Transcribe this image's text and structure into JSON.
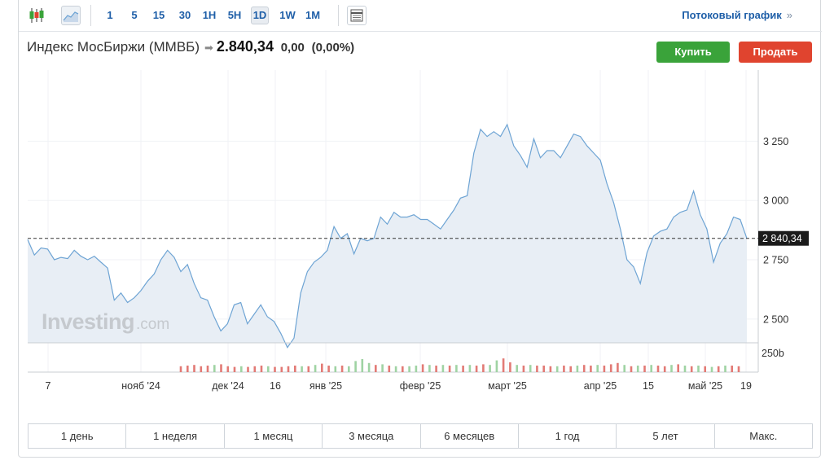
{
  "toolbar": {
    "candles_icon": "candlestick-icon",
    "area_icon": "area-chart-icon",
    "table_icon": "data-table-icon",
    "intervals": [
      {
        "label": "1",
        "active": false
      },
      {
        "label": "5",
        "active": false
      },
      {
        "label": "15",
        "active": false
      },
      {
        "label": "30",
        "active": false
      },
      {
        "label": "1H",
        "active": false
      },
      {
        "label": "5H",
        "active": false
      },
      {
        "label": "1D",
        "active": true
      },
      {
        "label": "1W",
        "active": false
      },
      {
        "label": "1M",
        "active": false
      }
    ],
    "stream_link": "Потоковый график",
    "stream_chevron": "»"
  },
  "header": {
    "instrument": "Индекс МосБиржи (MMBБ)",
    "price": "2.840,34",
    "change": "0,00",
    "change_pct": "(0,00%)"
  },
  "actions": {
    "buy": "Купить",
    "sell": "Продать"
  },
  "watermark": {
    "brand": "Investing",
    "suffix": ".com"
  },
  "colors": {
    "line": "#6ea4d4",
    "fill": "#e8eef5",
    "buy": "#3aa33a",
    "sell": "#e0442f",
    "vol_up": "#9fd3a3",
    "vol_down": "#e27a75"
  },
  "chart_data": {
    "type": "area",
    "title": "",
    "x_tick_labels": [
      "7",
      "нояб '24",
      "дек '24",
      "16",
      "янв '25",
      "февр '25",
      "март '25",
      "апр '25",
      "15",
      "май '25",
      "19"
    ],
    "y_tick_labels": [
      "3 250",
      "3 000",
      "2 750",
      "2 500"
    ],
    "y_ticks": [
      3250,
      3000,
      2750,
      2500
    ],
    "ylim": [
      2400,
      3550
    ],
    "last_price_label": "2 840,34",
    "last_price": 2840.34,
    "volume_label": "250b",
    "grid": true,
    "series": [
      {
        "values": [
          2835,
          2770,
          2800,
          2795,
          2750,
          2760,
          2755,
          2790,
          2765,
          2750,
          2765,
          2740,
          2715,
          2580,
          2610,
          2570,
          2590,
          2620,
          2660,
          2690,
          2750,
          2790,
          2760,
          2700,
          2730,
          2650,
          2590,
          2580,
          2510,
          2450,
          2480,
          2560,
          2570,
          2480,
          2520,
          2560,
          2510,
          2490,
          2440,
          2380,
          2420,
          2610,
          2700,
          2740,
          2760,
          2790,
          2890,
          2840,
          2860,
          2775,
          2840,
          2830,
          2840,
          2930,
          2900,
          2950,
          2930,
          2930,
          2940,
          2920,
          2920,
          2900,
          2880,
          2920,
          2960,
          3010,
          3020,
          3200,
          3300,
          3270,
          3290,
          3270,
          3320,
          3230,
          3190,
          3140,
          3260,
          3180,
          3210,
          3210,
          3180,
          3230,
          3280,
          3270,
          3230,
          3200,
          3170,
          3070,
          2990,
          2880,
          2750,
          2720,
          2650,
          2780,
          2850,
          2870,
          2880,
          2930,
          2950,
          2960,
          3040,
          2940,
          2880,
          2740,
          2820,
          2860,
          2930,
          2920,
          2840
        ],
        "volume": [
          {
            "v": 0.45,
            "d": true
          },
          {
            "v": 0.5,
            "d": true
          },
          {
            "v": 0.55,
            "d": true
          },
          {
            "v": 0.45,
            "d": true
          },
          {
            "v": 0.5,
            "d": true
          },
          {
            "v": 0.55,
            "d": false
          },
          {
            "v": 0.6,
            "d": true
          },
          {
            "v": 0.45,
            "d": true
          },
          {
            "v": 0.4,
            "d": true
          },
          {
            "v": 0.45,
            "d": false
          },
          {
            "v": 0.4,
            "d": true
          },
          {
            "v": 0.45,
            "d": true
          },
          {
            "v": 0.5,
            "d": true
          },
          {
            "v": 0.45,
            "d": false
          },
          {
            "v": 0.4,
            "d": true
          },
          {
            "v": 0.4,
            "d": true
          },
          {
            "v": 0.45,
            "d": true
          },
          {
            "v": 0.5,
            "d": true
          },
          {
            "v": 0.45,
            "d": false
          },
          {
            "v": 0.45,
            "d": true
          },
          {
            "v": 0.55,
            "d": false
          },
          {
            "v": 0.65,
            "d": true
          },
          {
            "v": 0.5,
            "d": true
          },
          {
            "v": 0.45,
            "d": false
          },
          {
            "v": 0.5,
            "d": true
          },
          {
            "v": 0.45,
            "d": false
          },
          {
            "v": 0.85,
            "d": false
          },
          {
            "v": 1.0,
            "d": false
          },
          {
            "v": 0.7,
            "d": false
          },
          {
            "v": 0.55,
            "d": true
          },
          {
            "v": 0.6,
            "d": false
          },
          {
            "v": 0.5,
            "d": true
          },
          {
            "v": 0.45,
            "d": false
          },
          {
            "v": 0.45,
            "d": true
          },
          {
            "v": 0.45,
            "d": false
          },
          {
            "v": 0.5,
            "d": false
          },
          {
            "v": 0.6,
            "d": true
          },
          {
            "v": 0.55,
            "d": false
          },
          {
            "v": 0.5,
            "d": true
          },
          {
            "v": 0.55,
            "d": false
          },
          {
            "v": 0.5,
            "d": true
          },
          {
            "v": 0.55,
            "d": false
          },
          {
            "v": 0.5,
            "d": true
          },
          {
            "v": 0.55,
            "d": false
          },
          {
            "v": 0.5,
            "d": true
          },
          {
            "v": 0.6,
            "d": true
          },
          {
            "v": 0.55,
            "d": false
          },
          {
            "v": 0.9,
            "d": false
          },
          {
            "v": 1.05,
            "d": true
          },
          {
            "v": 0.75,
            "d": true
          },
          {
            "v": 0.55,
            "d": false
          },
          {
            "v": 0.5,
            "d": true
          },
          {
            "v": 0.55,
            "d": false
          },
          {
            "v": 0.5,
            "d": true
          },
          {
            "v": 0.5,
            "d": true
          },
          {
            "v": 0.45,
            "d": true
          },
          {
            "v": 0.45,
            "d": false
          },
          {
            "v": 0.5,
            "d": true
          },
          {
            "v": 0.45,
            "d": true
          },
          {
            "v": 0.5,
            "d": false
          },
          {
            "v": 0.55,
            "d": true
          },
          {
            "v": 0.5,
            "d": true
          },
          {
            "v": 0.55,
            "d": false
          },
          {
            "v": 0.5,
            "d": true
          },
          {
            "v": 0.6,
            "d": true
          },
          {
            "v": 0.7,
            "d": true
          },
          {
            "v": 0.55,
            "d": false
          },
          {
            "v": 0.45,
            "d": true
          },
          {
            "v": 0.5,
            "d": false
          },
          {
            "v": 0.5,
            "d": true
          },
          {
            "v": 0.55,
            "d": false
          },
          {
            "v": 0.5,
            "d": true
          },
          {
            "v": 0.45,
            "d": true
          },
          {
            "v": 0.55,
            "d": false
          },
          {
            "v": 0.6,
            "d": true
          },
          {
            "v": 0.5,
            "d": false
          },
          {
            "v": 0.45,
            "d": true
          },
          {
            "v": 0.5,
            "d": false
          },
          {
            "v": 0.45,
            "d": true
          },
          {
            "v": 0.4,
            "d": false
          },
          {
            "v": 0.45,
            "d": true
          },
          {
            "v": 0.5,
            "d": false
          },
          {
            "v": 0.5,
            "d": true
          },
          {
            "v": 0.45,
            "d": true
          }
        ]
      }
    ]
  },
  "periods": [
    "1 день",
    "1 неделя",
    "1 месяц",
    "3 месяца",
    "6 месяцев",
    "1 год",
    "5 лет",
    "Макс."
  ]
}
